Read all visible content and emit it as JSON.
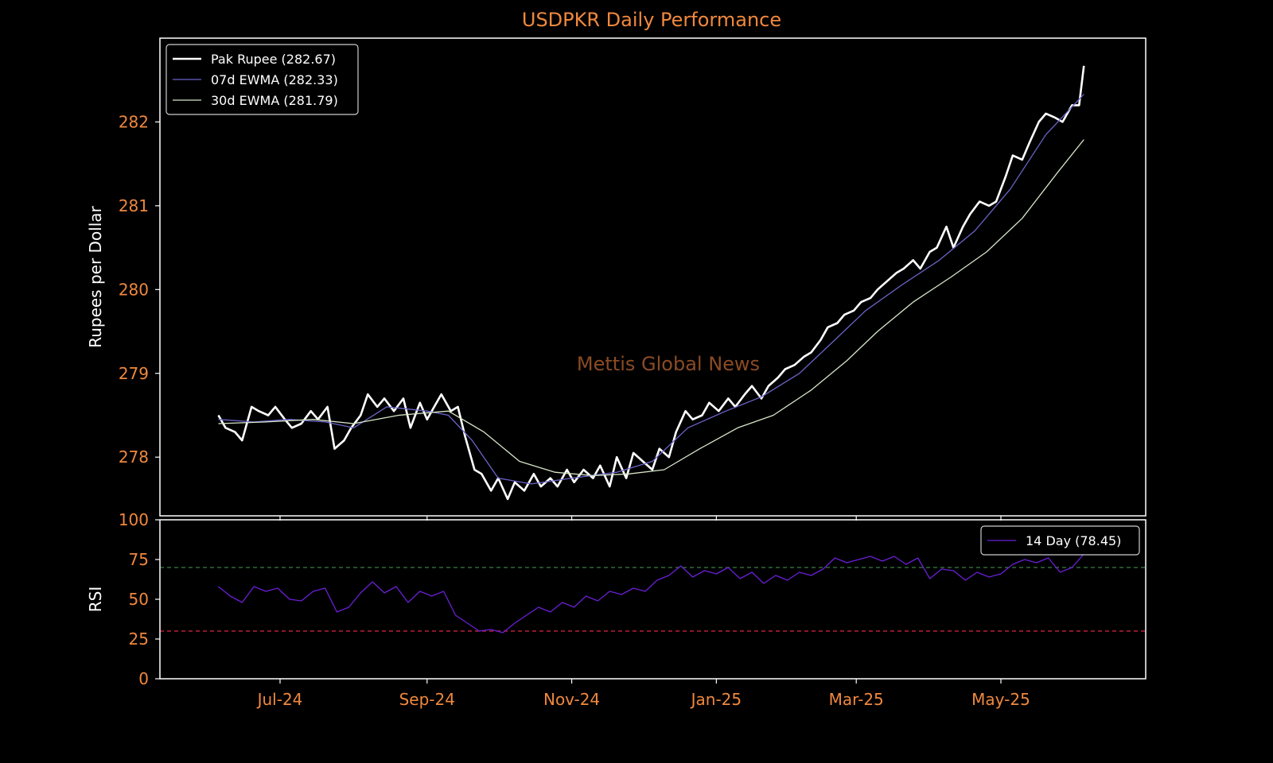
{
  "title": "USDPKR Daily Performance",
  "watermark": "Mettis Global News",
  "colors": {
    "background": "#000000",
    "frame": "#ffffff",
    "title": "#f0883e",
    "ticks": "#f0883e",
    "price": "#ffffff",
    "ewma7": "#6a64c8",
    "ewma30": "#d6e6c8",
    "rsi": "#6a1fd6",
    "overbought": "#2f6b36",
    "oversold": "#b81f3a",
    "watermark": "#8a4b24"
  },
  "x_ticks": [
    {
      "label": "Jul-24",
      "date": "2024-07-01"
    },
    {
      "label": "Sep-24",
      "date": "2024-09-01"
    },
    {
      "label": "Nov-24",
      "date": "2024-11-01"
    },
    {
      "label": "Jan-25",
      "date": "2025-01-01"
    },
    {
      "label": "Mar-25",
      "date": "2025-03-01"
    },
    {
      "label": "May-25",
      "date": "2025-05-01"
    }
  ],
  "chart_data": [
    {
      "type": "line",
      "ylabel": "Rupees per Dollar",
      "ylim": [
        277.3,
        283.0
      ],
      "yticks": [
        278,
        279,
        280,
        281,
        282
      ],
      "grid": false,
      "legend_position": "top-left",
      "series": [
        {
          "name": "Pak Rupee (282.67)",
          "color": "#ffffff",
          "points": [
            [
              "2024-06-05",
              278.5
            ],
            [
              "2024-06-08",
              278.35
            ],
            [
              "2024-06-12",
              278.3
            ],
            [
              "2024-06-15",
              278.2
            ],
            [
              "2024-06-19",
              278.6
            ],
            [
              "2024-06-22",
              278.55
            ],
            [
              "2024-06-26",
              278.5
            ],
            [
              "2024-06-29",
              278.6
            ],
            [
              "2024-07-03",
              278.45
            ],
            [
              "2024-07-06",
              278.35
            ],
            [
              "2024-07-10",
              278.4
            ],
            [
              "2024-07-14",
              278.55
            ],
            [
              "2024-07-17",
              278.45
            ],
            [
              "2024-07-21",
              278.6
            ],
            [
              "2024-07-24",
              278.1
            ],
            [
              "2024-07-28",
              278.2
            ],
            [
              "2024-07-31",
              278.35
            ],
            [
              "2024-08-04",
              278.5
            ],
            [
              "2024-08-07",
              278.75
            ],
            [
              "2024-08-11",
              278.6
            ],
            [
              "2024-08-14",
              278.7
            ],
            [
              "2024-08-18",
              278.55
            ],
            [
              "2024-08-22",
              278.7
            ],
            [
              "2024-08-25",
              278.35
            ],
            [
              "2024-08-29",
              278.65
            ],
            [
              "2024-09-01",
              278.45
            ],
            [
              "2024-09-04",
              278.6
            ],
            [
              "2024-09-07",
              278.75
            ],
            [
              "2024-09-11",
              278.55
            ],
            [
              "2024-09-14",
              278.6
            ],
            [
              "2024-09-17",
              278.25
            ],
            [
              "2024-09-21",
              277.85
            ],
            [
              "2024-09-24",
              277.8
            ],
            [
              "2024-09-28",
              277.6
            ],
            [
              "2024-10-01",
              277.75
            ],
            [
              "2024-10-05",
              277.5
            ],
            [
              "2024-10-08",
              277.7
            ],
            [
              "2024-10-12",
              277.6
            ],
            [
              "2024-10-16",
              277.8
            ],
            [
              "2024-10-19",
              277.65
            ],
            [
              "2024-10-23",
              277.75
            ],
            [
              "2024-10-26",
              277.65
            ],
            [
              "2024-10-30",
              277.85
            ],
            [
              "2024-11-02",
              277.7
            ],
            [
              "2024-11-06",
              277.85
            ],
            [
              "2024-11-10",
              277.75
            ],
            [
              "2024-11-13",
              277.9
            ],
            [
              "2024-11-17",
              277.65
            ],
            [
              "2024-11-20",
              278.0
            ],
            [
              "2024-11-24",
              277.75
            ],
            [
              "2024-11-27",
              278.05
            ],
            [
              "2024-12-01",
              277.95
            ],
            [
              "2024-12-05",
              277.85
            ],
            [
              "2024-12-08",
              278.1
            ],
            [
              "2024-12-12",
              278.0
            ],
            [
              "2024-12-15",
              278.3
            ],
            [
              "2024-12-19",
              278.55
            ],
            [
              "2024-12-22",
              278.45
            ],
            [
              "2024-12-26",
              278.5
            ],
            [
              "2024-12-29",
              278.65
            ],
            [
              "2025-01-02",
              278.55
            ],
            [
              "2025-01-06",
              278.7
            ],
            [
              "2025-01-09",
              278.6
            ],
            [
              "2025-01-13",
              278.75
            ],
            [
              "2025-01-16",
              278.85
            ],
            [
              "2025-01-20",
              278.7
            ],
            [
              "2025-01-23",
              278.85
            ],
            [
              "2025-01-27",
              278.95
            ],
            [
              "2025-01-30",
              279.05
            ],
            [
              "2025-02-03",
              279.1
            ],
            [
              "2025-02-07",
              279.2
            ],
            [
              "2025-02-10",
              279.25
            ],
            [
              "2025-02-14",
              279.4
            ],
            [
              "2025-02-17",
              279.55
            ],
            [
              "2025-02-21",
              279.6
            ],
            [
              "2025-02-24",
              279.7
            ],
            [
              "2025-02-28",
              279.75
            ],
            [
              "2025-03-03",
              279.85
            ],
            [
              "2025-03-07",
              279.9
            ],
            [
              "2025-03-10",
              280.0
            ],
            [
              "2025-03-14",
              280.1
            ],
            [
              "2025-03-18",
              280.2
            ],
            [
              "2025-03-21",
              280.25
            ],
            [
              "2025-03-25",
              280.35
            ],
            [
              "2025-03-28",
              280.25
            ],
            [
              "2025-04-01",
              280.45
            ],
            [
              "2025-04-04",
              280.5
            ],
            [
              "2025-04-08",
              280.75
            ],
            [
              "2025-04-11",
              280.5
            ],
            [
              "2025-04-15",
              280.75
            ],
            [
              "2025-04-18",
              280.9
            ],
            [
              "2025-04-22",
              281.05
            ],
            [
              "2025-04-26",
              281.0
            ],
            [
              "2025-04-29",
              281.05
            ],
            [
              "2025-05-03",
              281.35
            ],
            [
              "2025-05-06",
              281.6
            ],
            [
              "2025-05-10",
              281.55
            ],
            [
              "2025-05-13",
              281.75
            ],
            [
              "2025-05-17",
              282.0
            ],
            [
              "2025-05-20",
              282.1
            ],
            [
              "2025-05-24",
              282.05
            ],
            [
              "2025-05-27",
              282.0
            ],
            [
              "2025-05-31",
              282.2
            ],
            [
              "2025-06-03",
              282.2
            ],
            [
              "2025-06-05",
              282.67
            ]
          ]
        },
        {
          "name": "07d EWMA (282.33)",
          "color": "#6a64c8",
          "points": [
            [
              "2024-06-05",
              278.45
            ],
            [
              "2024-06-20",
              278.42
            ],
            [
              "2024-07-05",
              278.45
            ],
            [
              "2024-07-20",
              278.42
            ],
            [
              "2024-08-01",
              278.35
            ],
            [
              "2024-08-15",
              278.6
            ],
            [
              "2024-09-01",
              278.55
            ],
            [
              "2024-09-10",
              278.5
            ],
            [
              "2024-09-20",
              278.2
            ],
            [
              "2024-10-01",
              277.75
            ],
            [
              "2024-10-15",
              277.68
            ],
            [
              "2024-11-01",
              277.75
            ],
            [
              "2024-11-20",
              277.82
            ],
            [
              "2024-12-05",
              277.95
            ],
            [
              "2024-12-20",
              278.35
            ],
            [
              "2025-01-05",
              278.55
            ],
            [
              "2025-01-20",
              278.72
            ],
            [
              "2025-02-05",
              279.0
            ],
            [
              "2025-02-20",
              279.4
            ],
            [
              "2025-03-05",
              279.75
            ],
            [
              "2025-03-20",
              280.05
            ],
            [
              "2025-04-05",
              280.35
            ],
            [
              "2025-04-20",
              280.7
            ],
            [
              "2025-05-05",
              281.2
            ],
            [
              "2025-05-20",
              281.85
            ],
            [
              "2025-06-05",
              282.33
            ]
          ]
        },
        {
          "name": "30d EWMA (281.79)",
          "color": "#d6e6c8",
          "points": [
            [
              "2024-06-05",
              278.4
            ],
            [
              "2024-06-25",
              278.42
            ],
            [
              "2024-07-15",
              278.45
            ],
            [
              "2024-08-01",
              278.4
            ],
            [
              "2024-08-20",
              278.5
            ],
            [
              "2024-09-10",
              278.55
            ],
            [
              "2024-09-25",
              278.3
            ],
            [
              "2024-10-10",
              277.95
            ],
            [
              "2024-10-25",
              277.82
            ],
            [
              "2024-11-10",
              277.78
            ],
            [
              "2024-11-25",
              277.8
            ],
            [
              "2024-12-10",
              277.85
            ],
            [
              "2024-12-25",
              278.1
            ],
            [
              "2025-01-10",
              278.35
            ],
            [
              "2025-01-25",
              278.5
            ],
            [
              "2025-02-10",
              278.8
            ],
            [
              "2025-02-25",
              279.15
            ],
            [
              "2025-03-10",
              279.5
            ],
            [
              "2025-03-25",
              279.85
            ],
            [
              "2025-04-10",
              280.15
            ],
            [
              "2025-04-25",
              280.45
            ],
            [
              "2025-05-10",
              280.85
            ],
            [
              "2025-05-25",
              281.4
            ],
            [
              "2025-06-05",
              281.79
            ]
          ]
        }
      ]
    },
    {
      "type": "line",
      "ylabel": "RSI",
      "ylim": [
        0,
        100
      ],
      "yticks": [
        0,
        25,
        50,
        75,
        100
      ],
      "reference_lines": [
        {
          "y": 70,
          "color": "#2f6b36",
          "style": "dashed"
        },
        {
          "y": 30,
          "color": "#b81f3a",
          "style": "dashed"
        }
      ],
      "grid": false,
      "legend_position": "top-right",
      "series": [
        {
          "name": "14 Day (78.45)",
          "color": "#6a1fd6",
          "points": [
            [
              "2024-06-05",
              58
            ],
            [
              "2024-06-10",
              52
            ],
            [
              "2024-06-15",
              48
            ],
            [
              "2024-06-20",
              58
            ],
            [
              "2024-06-25",
              55
            ],
            [
              "2024-06-30",
              57
            ],
            [
              "2024-07-05",
              50
            ],
            [
              "2024-07-10",
              49
            ],
            [
              "2024-07-15",
              55
            ],
            [
              "2024-07-20",
              57
            ],
            [
              "2024-07-25",
              42
            ],
            [
              "2024-07-30",
              45
            ],
            [
              "2024-08-04",
              54
            ],
            [
              "2024-08-09",
              61
            ],
            [
              "2024-08-14",
              54
            ],
            [
              "2024-08-19",
              58
            ],
            [
              "2024-08-24",
              48
            ],
            [
              "2024-08-29",
              55
            ],
            [
              "2024-09-03",
              52
            ],
            [
              "2024-09-08",
              55
            ],
            [
              "2024-09-13",
              40
            ],
            [
              "2024-09-18",
              35
            ],
            [
              "2024-09-23",
              30
            ],
            [
              "2024-09-28",
              31
            ],
            [
              "2024-10-03",
              29
            ],
            [
              "2024-10-08",
              35
            ],
            [
              "2024-10-13",
              40
            ],
            [
              "2024-10-18",
              45
            ],
            [
              "2024-10-23",
              42
            ],
            [
              "2024-10-28",
              48
            ],
            [
              "2024-11-02",
              45
            ],
            [
              "2024-11-07",
              52
            ],
            [
              "2024-11-12",
              49
            ],
            [
              "2024-11-17",
              55
            ],
            [
              "2024-11-22",
              53
            ],
            [
              "2024-11-27",
              57
            ],
            [
              "2024-12-02",
              55
            ],
            [
              "2024-12-07",
              62
            ],
            [
              "2024-12-12",
              65
            ],
            [
              "2024-12-17",
              71
            ],
            [
              "2024-12-22",
              64
            ],
            [
              "2024-12-27",
              68
            ],
            [
              "2025-01-01",
              66
            ],
            [
              "2025-01-06",
              70
            ],
            [
              "2025-01-11",
              63
            ],
            [
              "2025-01-16",
              67
            ],
            [
              "2025-01-21",
              60
            ],
            [
              "2025-01-26",
              65
            ],
            [
              "2025-01-31",
              62
            ],
            [
              "2025-02-05",
              67
            ],
            [
              "2025-02-10",
              65
            ],
            [
              "2025-02-15",
              69
            ],
            [
              "2025-02-20",
              76
            ],
            [
              "2025-02-25",
              73
            ],
            [
              "2025-03-02",
              75
            ],
            [
              "2025-03-07",
              77
            ],
            [
              "2025-03-12",
              74
            ],
            [
              "2025-03-17",
              77
            ],
            [
              "2025-03-22",
              72
            ],
            [
              "2025-03-27",
              76
            ],
            [
              "2025-04-01",
              63
            ],
            [
              "2025-04-06",
              69
            ],
            [
              "2025-04-11",
              68
            ],
            [
              "2025-04-16",
              62
            ],
            [
              "2025-04-21",
              67
            ],
            [
              "2025-04-26",
              64
            ],
            [
              "2025-05-01",
              66
            ],
            [
              "2025-05-06",
              72
            ],
            [
              "2025-05-11",
              75
            ],
            [
              "2025-05-16",
              73
            ],
            [
              "2025-05-21",
              76
            ],
            [
              "2025-05-26",
              67
            ],
            [
              "2025-05-31",
              70
            ],
            [
              "2025-06-05",
              78.45
            ]
          ]
        }
      ]
    }
  ]
}
